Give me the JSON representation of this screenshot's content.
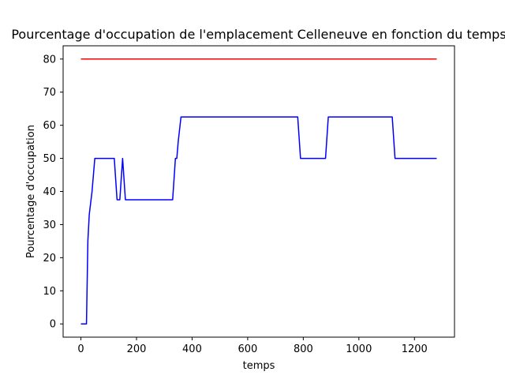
{
  "chart_data": {
    "type": "line",
    "title": "Pourcentage d'occupation de l'emplacement Celleneuve en fonction du temps",
    "xlabel": "temps",
    "ylabel": "Pourcentage d'occupation",
    "xlim": [
      -64,
      1344
    ],
    "ylim": [
      -4,
      84
    ],
    "xticks": [
      0,
      200,
      400,
      600,
      800,
      1000,
      1200
    ],
    "yticks": [
      0,
      10,
      20,
      30,
      40,
      50,
      60,
      70,
      80
    ],
    "grid": false,
    "series": [
      {
        "color": "#0000ff",
        "x": [
          0,
          20,
          25,
          30,
          40,
          50,
          60,
          120,
          130,
          140,
          150,
          160,
          330,
          340,
          345,
          350,
          360,
          780,
          790,
          880,
          890,
          1120,
          1130,
          1280
        ],
        "y": [
          0,
          0,
          25,
          33,
          40,
          50,
          50,
          50,
          37.5,
          37.5,
          50,
          37.5,
          37.5,
          50,
          50,
          55,
          62.5,
          62.5,
          50,
          50,
          62.5,
          62.5,
          50,
          50
        ]
      },
      {
        "color": "#ff0000",
        "x": [
          0,
          1280
        ],
        "y": [
          80,
          80
        ]
      }
    ]
  }
}
